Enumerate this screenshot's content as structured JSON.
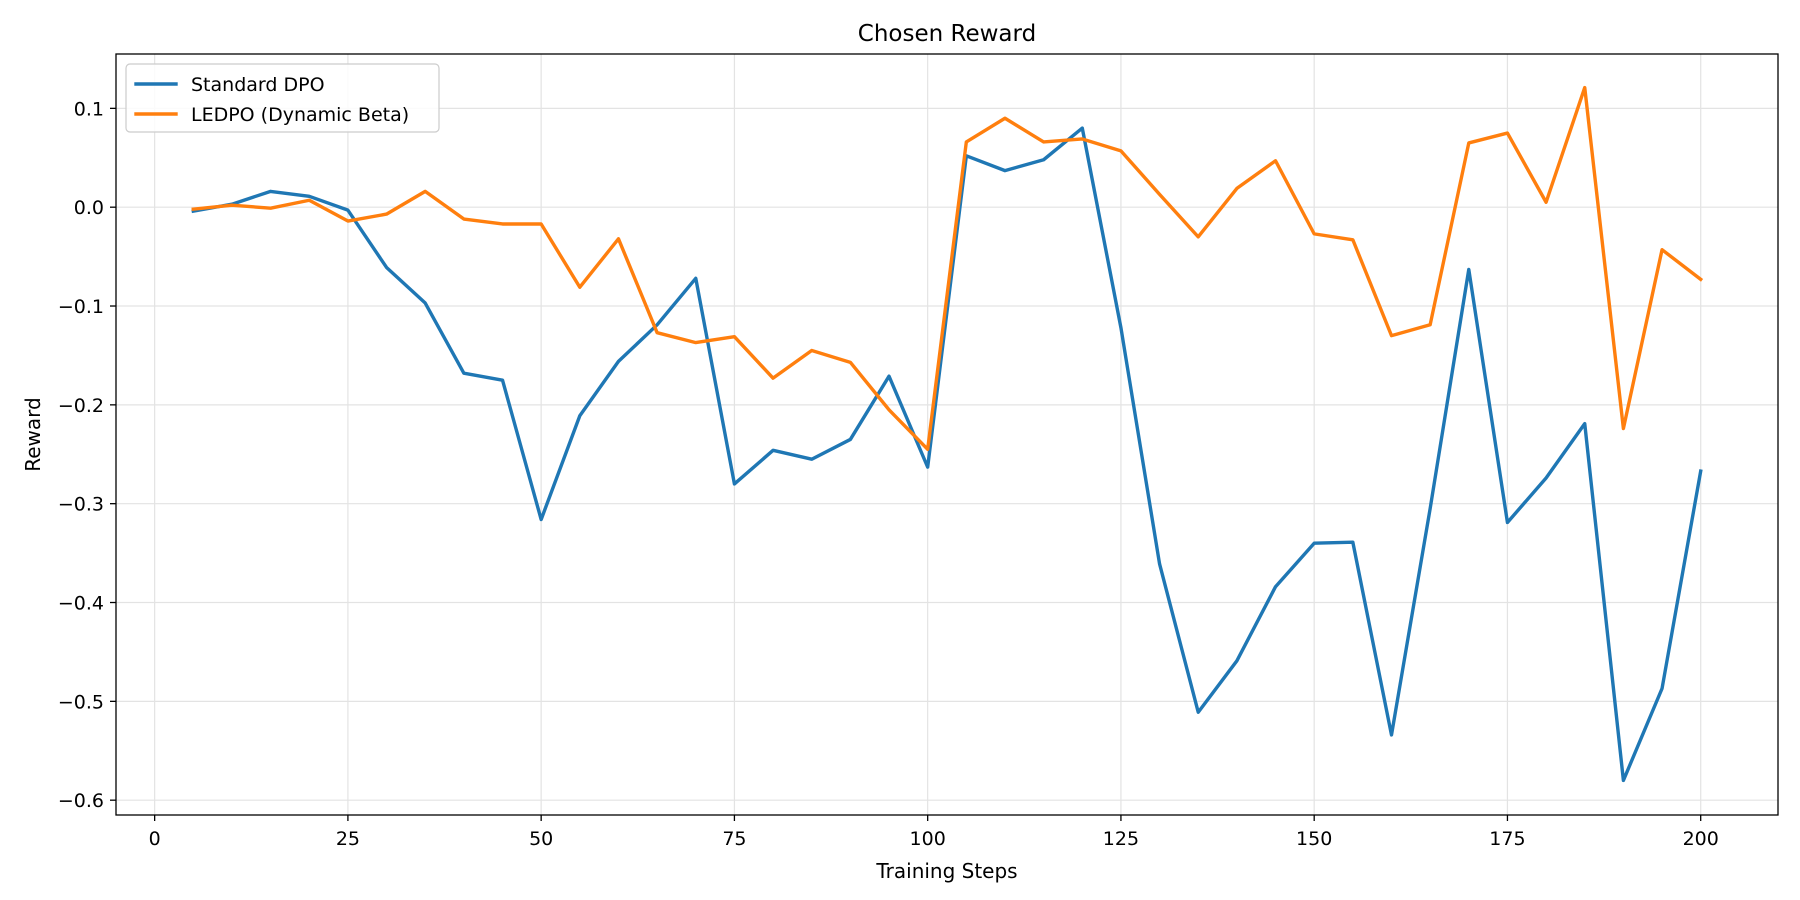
{
  "chart_data": {
    "type": "line",
    "title": "Chosen Reward",
    "xlabel": "Training Steps",
    "ylabel": "Reward",
    "xlim": [
      -5,
      210
    ],
    "ylim": [
      -0.615,
      0.155
    ],
    "x_ticks": [
      0,
      25,
      50,
      75,
      100,
      125,
      150,
      175,
      200
    ],
    "x_tick_labels": [
      "0",
      "25",
      "50",
      "75",
      "100",
      "125",
      "150",
      "175",
      "200"
    ],
    "y_ticks": [
      0.1,
      0.0,
      -0.1,
      -0.2,
      -0.3,
      -0.4,
      -0.5,
      -0.6
    ],
    "y_tick_labels": [
      "0.1",
      "0.0",
      "−0.1",
      "−0.2",
      "−0.3",
      "−0.4",
      "−0.5",
      "−0.6"
    ],
    "grid": true,
    "legend_position": "top-left",
    "x": [
      5,
      10,
      15,
      20,
      25,
      30,
      35,
      40,
      45,
      50,
      55,
      60,
      65,
      70,
      75,
      80,
      85,
      90,
      95,
      100,
      105,
      110,
      115,
      120,
      125,
      130,
      135,
      140,
      145,
      150,
      155,
      160,
      165,
      170,
      175,
      180,
      185,
      190,
      195,
      200
    ],
    "series": [
      {
        "name": "Standard DPO",
        "color": "#1f77b4",
        "values": [
          -0.004,
          0.003,
          0.016,
          0.011,
          -0.003,
          -0.061,
          -0.097,
          -0.168,
          -0.175,
          -0.316,
          -0.211,
          -0.156,
          -0.119,
          -0.072,
          -0.28,
          -0.246,
          -0.255,
          -0.235,
          -0.171,
          -0.263,
          0.052,
          0.037,
          0.048,
          0.08,
          -0.122,
          -0.361,
          -0.511,
          -0.459,
          -0.384,
          -0.34,
          -0.339,
          -0.534,
          -0.305,
          -0.063,
          -0.319,
          -0.274,
          -0.219,
          -0.58,
          -0.487,
          -0.267
        ]
      },
      {
        "name": "LEDPO (Dynamic Beta)",
        "color": "#ff7f0e",
        "values": [
          -0.002,
          0.002,
          -0.001,
          0.007,
          -0.014,
          -0.007,
          0.016,
          -0.012,
          -0.017,
          -0.017,
          -0.081,
          -0.032,
          -0.127,
          -0.137,
          -0.131,
          -0.173,
          -0.145,
          -0.157,
          -0.205,
          -0.245,
          0.066,
          0.09,
          0.066,
          0.069,
          0.057,
          0.013,
          -0.03,
          0.019,
          0.047,
          -0.027,
          -0.033,
          -0.13,
          -0.119,
          0.065,
          0.075,
          0.005,
          0.121,
          -0.224,
          -0.043,
          -0.073
        ]
      }
    ]
  }
}
